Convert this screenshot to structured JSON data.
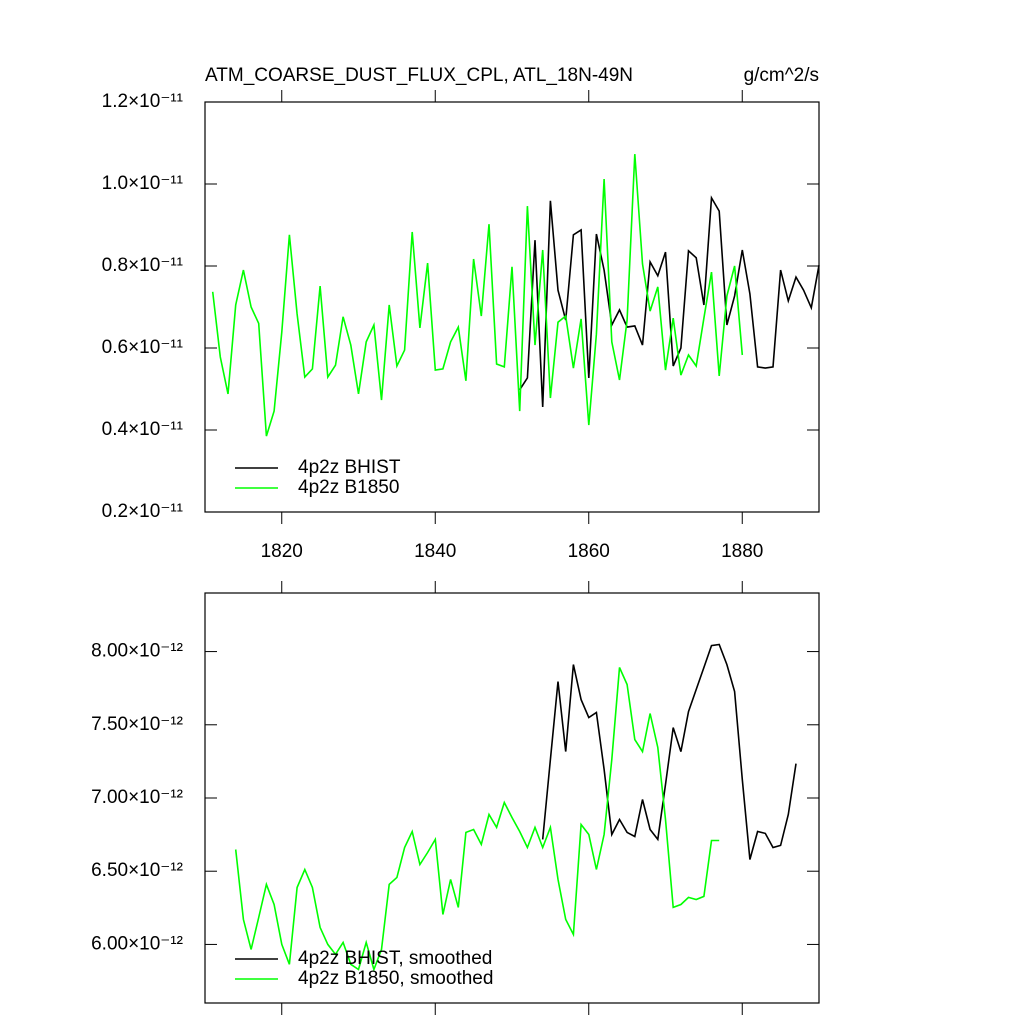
{
  "chart_data": [
    {
      "type": "line",
      "title": "ATM_COARSE_DUST_FLUX_CPL, ATL_18N-49N",
      "units": "g/cm^2/s",
      "xlim": [
        1810,
        1890
      ],
      "xticks": [
        1820,
        1840,
        1860,
        1880
      ],
      "show_xtick_labels": true,
      "ylim": [
        2e-12,
        1.2e-11
      ],
      "yticks": [
        {
          "value": 2e-12,
          "label": "0.2×10⁻¹¹"
        },
        {
          "value": 4e-12,
          "label": "0.4×10⁻¹¹"
        },
        {
          "value": 6e-12,
          "label": "0.6×10⁻¹¹"
        },
        {
          "value": 8e-12,
          "label": "0.8×10⁻¹¹"
        },
        {
          "value": 1e-11,
          "label": "1.0×10⁻¹¹"
        },
        {
          "value": 1.2e-11,
          "label": "1.2×10⁻¹¹"
        }
      ],
      "legend": "lower left",
      "series": [
        {
          "name": "4p2z BHIST",
          "color": "#000000",
          "x": [
            1851,
            1852,
            1853,
            1854,
            1855,
            1856,
            1857,
            1858,
            1859,
            1860,
            1861,
            1862,
            1863,
            1864,
            1865,
            1866,
            1867,
            1868,
            1869,
            1870,
            1871,
            1872,
            1873,
            1874,
            1875,
            1876,
            1877,
            1878,
            1879,
            1880,
            1881,
            1882,
            1883,
            1884,
            1885,
            1886,
            1887,
            1888,
            1889,
            1890
          ],
          "values": [
            4.98e-12,
            5.27e-12,
            8.63e-12,
            4.56e-12,
            9.59e-12,
            7.41e-12,
            6.68e-12,
            8.76e-12,
            8.88e-12,
            5.27e-12,
            8.78e-12,
            7.9e-12,
            6.56e-12,
            6.93e-12,
            6.51e-12,
            6.54e-12,
            6.07e-12,
            8.1e-12,
            7.76e-12,
            8.34e-12,
            5.56e-12,
            6e-12,
            8.37e-12,
            8.2e-12,
            7.05e-12,
            9.66e-12,
            9.34e-12,
            6.56e-12,
            7.27e-12,
            8.39e-12,
            7.32e-12,
            5.54e-12,
            5.51e-12,
            5.54e-12,
            7.9e-12,
            7.15e-12,
            7.73e-12,
            7.41e-12,
            6.98e-12,
            8.02e-12
          ]
        },
        {
          "name": "4p2z B1850",
          "color": "#00ff00",
          "x": [
            1811,
            1812,
            1813,
            1814,
            1815,
            1816,
            1817,
            1818,
            1819,
            1820,
            1821,
            1822,
            1823,
            1824,
            1825,
            1826,
            1827,
            1828,
            1829,
            1830,
            1831,
            1832,
            1833,
            1834,
            1835,
            1836,
            1837,
            1838,
            1839,
            1840,
            1841,
            1842,
            1843,
            1844,
            1845,
            1846,
            1847,
            1848,
            1849,
            1850,
            1851,
            1852,
            1853,
            1854,
            1855,
            1856,
            1857,
            1858,
            1859,
            1860,
            1861,
            1862,
            1863,
            1864,
            1865,
            1866,
            1867,
            1868,
            1869,
            1870,
            1871,
            1872,
            1873,
            1874,
            1875,
            1876,
            1877,
            1878,
            1879,
            1880
          ],
          "values": [
            7.37e-12,
            5.78e-12,
            4.88e-12,
            7.05e-12,
            7.9e-12,
            7e-12,
            6.6e-12,
            3.85e-12,
            4.46e-12,
            6.39e-12,
            8.76e-12,
            6.83e-12,
            5.29e-12,
            5.49e-12,
            7.51e-12,
            5.29e-12,
            5.58e-12,
            6.76e-12,
            6.07e-12,
            4.88e-12,
            6.15e-12,
            6.56e-12,
            4.73e-12,
            7.05e-12,
            5.56e-12,
            5.95e-12,
            8.83e-12,
            6.49e-12,
            8.07e-12,
            5.46e-12,
            5.49e-12,
            6.15e-12,
            6.51e-12,
            5.2e-12,
            8.17e-12,
            6.78e-12,
            9.02e-12,
            5.61e-12,
            5.54e-12,
            7.98e-12,
            4.46e-12,
            9.46e-12,
            6.07e-12,
            8.39e-12,
            4.78e-12,
            6.63e-12,
            6.78e-12,
            5.51e-12,
            6.71e-12,
            4.12e-12,
            6.34e-12,
            1.012e-11,
            6.15e-12,
            5.22e-12,
            6.68e-12,
            1.073e-11,
            8.05e-12,
            6.9e-12,
            7.49e-12,
            5.46e-12,
            6.73e-12,
            5.34e-12,
            5.83e-12,
            5.56e-12,
            6.73e-12,
            7.85e-12,
            5.32e-12,
            7.27e-12,
            8e-12,
            5.83e-12
          ]
        }
      ]
    },
    {
      "type": "line",
      "xlim": [
        1810,
        1890
      ],
      "xticks": [
        1820,
        1840,
        1860,
        1880
      ],
      "show_xtick_labels": false,
      "ylim": [
        5.6e-12,
        8.4e-12
      ],
      "yticks": [
        {
          "value": 6e-12,
          "label": "6.00×10⁻¹²"
        },
        {
          "value": 6.5e-12,
          "label": "6.50×10⁻¹²"
        },
        {
          "value": 7e-12,
          "label": "7.00×10⁻¹²"
        },
        {
          "value": 7.5e-12,
          "label": "7.50×10⁻¹²"
        },
        {
          "value": 8e-12,
          "label": "8.00×10⁻¹²"
        }
      ],
      "legend": "lower left",
      "series": [
        {
          "name": "4p2z BHIST, smoothed",
          "color": "#000000",
          "x": [
            1854,
            1855,
            1856,
            1857,
            1858,
            1859,
            1860,
            1861,
            1862,
            1863,
            1864,
            1865,
            1866,
            1867,
            1868,
            1869,
            1870,
            1871,
            1872,
            1873,
            1874,
            1875,
            1876,
            1877,
            1878,
            1879,
            1880,
            1881,
            1882,
            1883,
            1884,
            1885,
            1886,
            1887
          ],
          "values": [
            6.717e-12,
            7.263e-12,
            7.795e-12,
            7.317e-12,
            7.911e-12,
            7.672e-12,
            7.549e-12,
            7.584e-12,
            7.195e-12,
            6.751e-12,
            6.853e-12,
            6.765e-12,
            6.737e-12,
            6.99e-12,
            6.785e-12,
            6.717e-12,
            7.092e-12,
            7.481e-12,
            7.317e-12,
            7.59e-12,
            7.741e-12,
            7.891e-12,
            8.041e-12,
            8.048e-12,
            7.911e-12,
            7.727e-12,
            7.126e-12,
            6.58e-12,
            6.771e-12,
            6.758e-12,
            6.662e-12,
            6.676e-12,
            6.887e-12,
            7.235e-12
          ]
        },
        {
          "name": "4p2z B1850, smoothed",
          "color": "#00ff00",
          "x": [
            1814,
            1815,
            1816,
            1817,
            1818,
            1819,
            1820,
            1821,
            1822,
            1823,
            1824,
            1825,
            1826,
            1827,
            1828,
            1829,
            1830,
            1831,
            1832,
            1833,
            1834,
            1835,
            1836,
            1837,
            1838,
            1839,
            1840,
            1841,
            1842,
            1843,
            1844,
            1845,
            1846,
            1847,
            1848,
            1849,
            1850,
            1851,
            1852,
            1853,
            1854,
            1855,
            1856,
            1857,
            1858,
            1859,
            1860,
            1861,
            1862,
            1863,
            1864,
            1865,
            1866,
            1867,
            1868,
            1869,
            1870,
            1871,
            1872,
            1873,
            1874,
            1875,
            1876,
            1877
          ],
          "values": [
            6.648e-12,
            6.171e-12,
            5.966e-12,
            6.184e-12,
            6.41e-12,
            6.273e-12,
            6e-12,
            5.864e-12,
            6.389e-12,
            6.512e-12,
            6.389e-12,
            6.116e-12,
            6e-12,
            5.932e-12,
            6.014e-12,
            5.864e-12,
            5.829e-12,
            6.014e-12,
            5.829e-12,
            5.966e-12,
            6.41e-12,
            6.457e-12,
            6.662e-12,
            6.771e-12,
            6.546e-12,
            6.628e-12,
            6.717e-12,
            6.205e-12,
            6.444e-12,
            6.253e-12,
            6.765e-12,
            6.785e-12,
            6.683e-12,
            6.887e-12,
            6.799e-12,
            6.969e-12,
            6.867e-12,
            6.771e-12,
            6.662e-12,
            6.799e-12,
            6.662e-12,
            6.799e-12,
            6.444e-12,
            6.171e-12,
            6.068e-12,
            6.819e-12,
            6.751e-12,
            6.512e-12,
            6.751e-12,
            7.263e-12,
            7.891e-12,
            7.775e-12,
            7.399e-12,
            7.317e-12,
            7.577e-12,
            7.345e-12,
            6.853e-12,
            6.253e-12,
            6.273e-12,
            6.321e-12,
            6.307e-12,
            6.328e-12,
            6.71e-12,
            6.71e-12
          ]
        }
      ]
    }
  ]
}
